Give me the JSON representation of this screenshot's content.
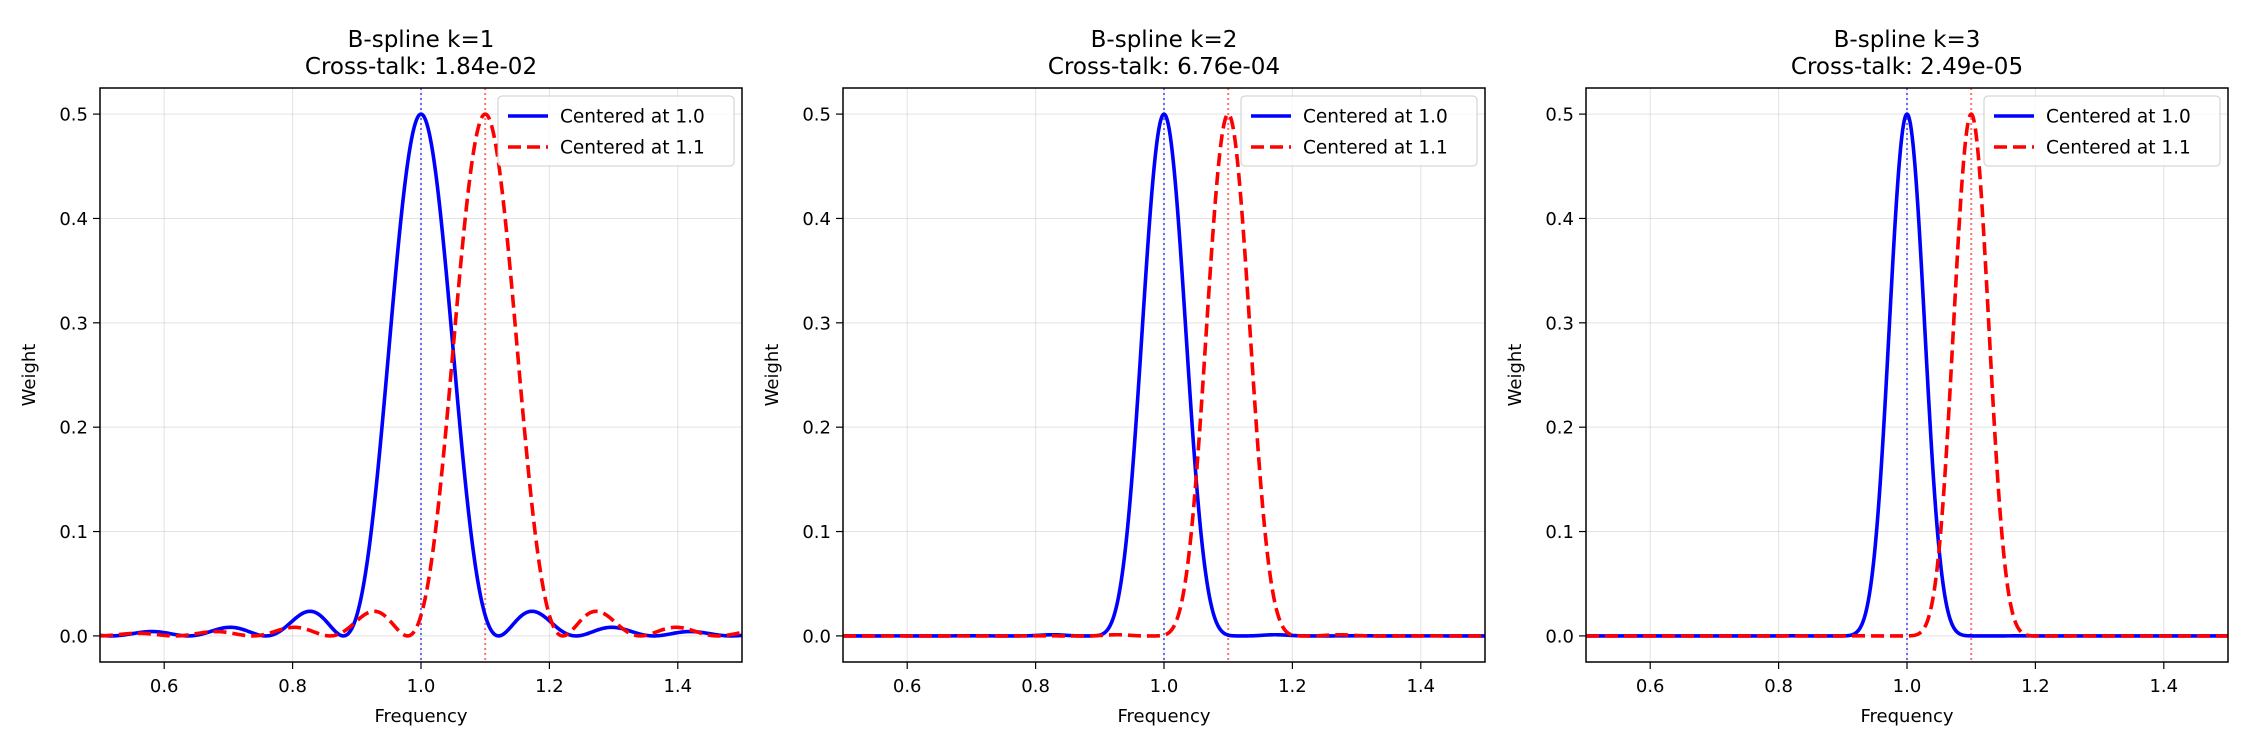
{
  "chart_data": [
    {
      "type": "line",
      "title": "B-spline k=1",
      "subtitle": "Cross-talk: 1.84e-02",
      "k": 1,
      "xlabel": "Frequency",
      "ylabel": "Weight",
      "xlim": [
        0.5,
        1.5
      ],
      "ylim": [
        -0.025,
        0.525
      ],
      "xticks": [
        "0.6",
        "0.8",
        "1.0",
        "1.2",
        "1.4"
      ],
      "yticks": [
        "0.0",
        "0.1",
        "0.2",
        "0.3",
        "0.4",
        "0.5"
      ],
      "grid": true,
      "legend_position": "top-right",
      "series": [
        {
          "name": "Centered at 1.0",
          "center": 1.0,
          "peak": 0.5,
          "color": "#0000ff",
          "style": "solid"
        },
        {
          "name": "Centered at 1.1",
          "center": 1.1,
          "peak": 0.5,
          "color": "#ff0000",
          "style": "dashed"
        }
      ],
      "vlines": [
        {
          "x": 1.0,
          "color": "#0000ff"
        },
        {
          "x": 1.1,
          "color": "#ff0000"
        }
      ]
    },
    {
      "type": "line",
      "title": "B-spline k=2",
      "subtitle": "Cross-talk: 6.76e-04",
      "k": 2,
      "xlabel": "Frequency",
      "ylabel": "Weight",
      "xlim": [
        0.5,
        1.5
      ],
      "ylim": [
        -0.025,
        0.525
      ],
      "xticks": [
        "0.6",
        "0.8",
        "1.0",
        "1.2",
        "1.4"
      ],
      "yticks": [
        "0.0",
        "0.1",
        "0.2",
        "0.3",
        "0.4",
        "0.5"
      ],
      "grid": true,
      "legend_position": "top-right",
      "series": [
        {
          "name": "Centered at 1.0",
          "center": 1.0,
          "peak": 0.5,
          "color": "#0000ff",
          "style": "solid"
        },
        {
          "name": "Centered at 1.1",
          "center": 1.1,
          "peak": 0.5,
          "color": "#ff0000",
          "style": "dashed"
        }
      ],
      "vlines": [
        {
          "x": 1.0,
          "color": "#0000ff"
        },
        {
          "x": 1.1,
          "color": "#ff0000"
        }
      ]
    },
    {
      "type": "line",
      "title": "B-spline k=3",
      "subtitle": "Cross-talk: 2.49e-05",
      "k": 3,
      "xlabel": "Frequency",
      "ylabel": "Weight",
      "xlim": [
        0.5,
        1.5
      ],
      "ylim": [
        -0.025,
        0.525
      ],
      "xticks": [
        "0.6",
        "0.8",
        "1.0",
        "1.2",
        "1.4"
      ],
      "yticks": [
        "0.0",
        "0.1",
        "0.2",
        "0.3",
        "0.4",
        "0.5"
      ],
      "grid": true,
      "legend_position": "top-right",
      "series": [
        {
          "name": "Centered at 1.0",
          "center": 1.0,
          "peak": 0.5,
          "color": "#0000ff",
          "style": "solid"
        },
        {
          "name": "Centered at 1.1",
          "center": 1.1,
          "peak": 0.5,
          "color": "#ff0000",
          "style": "dashed"
        }
      ],
      "vlines": [
        {
          "x": 1.0,
          "color": "#0000ff"
        },
        {
          "x": 1.1,
          "color": "#ff0000"
        }
      ]
    }
  ]
}
